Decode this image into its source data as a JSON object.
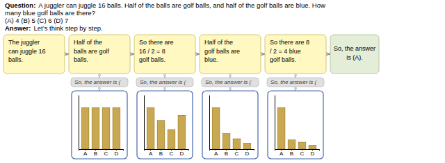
{
  "chart_data": [
    {
      "type": "bar",
      "title": "So, the answer is (",
      "categories": [
        "A",
        "B",
        "C",
        "D"
      ],
      "values": [
        1.0,
        1.0,
        1.0,
        1.0
      ],
      "color": "#C8A850",
      "ylim": [
        0,
        1.3
      ],
      "tick_labels": "x",
      "grid": false,
      "annotations": [
        "Question:",
        "A juggler can juggle 16 balls. Half of the balls are golf balls, and half of the golf balls are blue. How",
        "many blue golf balls are there?",
        "(A) 4    (B) 5    (C) 6    (D) 7",
        "Answer:",
        "Let’s think step by step.",
        "The juggler\ncan juggle 16\nballs.",
        "Half of the\nballs are golf\nballs.",
        "So there are\n16 / 2 = 8\ngolf balls.",
        "Half of the\ngolf balls are\nblue.",
        "So there are 8\n/ 2 = 4 blue\ngolf balls.",
        "So, the answer\nis (A)."
      ]
    },
    {
      "type": "bar",
      "title": "So, the answer is (",
      "categories": [
        "A",
        "B",
        "C",
        "D"
      ],
      "values": [
        1.6,
        1.1,
        0.75,
        1.3
      ],
      "color": "#C8A850",
      "ylim": [
        0,
        2.08
      ],
      "tick_labels": "x",
      "grid": false
    },
    {
      "type": "bar",
      "title": "So, the answer is (",
      "categories": [
        "A",
        "B",
        "C",
        "D"
      ],
      "values": [
        2.4,
        0.9,
        0.6,
        0.35
      ],
      "color": "#C8A850",
      "ylim": [
        0,
        3.12
      ],
      "tick_labels": "x",
      "grid": false
    },
    {
      "type": "bar",
      "title": "So, the answer is (",
      "categories": [
        "A",
        "B",
        "C",
        "D"
      ],
      "values": [
        2.7,
        0.6,
        0.45,
        0.25
      ],
      "color": "#C8A850",
      "ylim": [
        0,
        3.51
      ],
      "tick_labels": "x",
      "grid": false
    }
  ]
}
